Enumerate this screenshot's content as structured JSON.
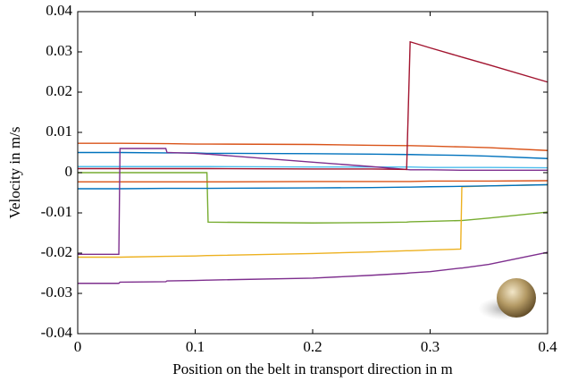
{
  "chart_data": {
    "type": "line",
    "xlabel": "Position on the belt in transport direction in m",
    "ylabel": "Velocity in m/s",
    "x": [
      0,
      0.035,
      0.036,
      0.075,
      0.076,
      0.1,
      0.11,
      0.111,
      0.2,
      0.25,
      0.28,
      0.283,
      0.3,
      0.326,
      0.327,
      0.35,
      0.4
    ],
    "xlim": [
      0,
      0.4
    ],
    "xticks": [
      0,
      0.1,
      0.2,
      0.3,
      0.4
    ],
    "ylim": [
      -0.04,
      0.04
    ],
    "yticks": [
      0.04,
      0.03,
      0.02,
      0.01,
      0,
      -0.01,
      -0.02,
      -0.03,
      -0.04
    ],
    "series": [
      {
        "color": "#d95319",
        "values": [
          0.0073,
          0.0073,
          0.0073,
          0.0072,
          0.0072,
          0.0071,
          0.0071,
          0.0071,
          0.007,
          0.0068,
          0.0067,
          0.0067,
          0.0066,
          0.0064,
          0.0064,
          0.0062,
          0.0055
        ]
      },
      {
        "color": "#0072bd",
        "values": [
          0.005,
          0.005,
          0.005,
          0.0049,
          0.0049,
          0.0049,
          0.0048,
          0.0048,
          0.0047,
          0.0046,
          0.0045,
          0.0045,
          0.0044,
          0.0043,
          0.0043,
          0.0041,
          0.0035
        ]
      },
      {
        "color": "#4dbeee",
        "values": [
          0.0015,
          0.0015,
          0.0015,
          0.0015,
          0.0015,
          0.0015,
          0.0015,
          0.0015,
          0.0014,
          0.0014,
          0.0014,
          0.0014,
          0.0013,
          0.0013,
          0.0013,
          0.0013,
          0.0012
        ]
      },
      {
        "color": "#77ac30",
        "values": [
          0,
          0,
          0,
          0,
          0,
          0,
          0,
          -0.0123,
          -0.0125,
          -0.0124,
          -0.0123,
          -0.0122,
          -0.0121,
          -0.0119,
          -0.0119,
          -0.0113,
          -0.0098
        ]
      },
      {
        "color": "#edb120",
        "values": [
          -0.021,
          -0.021,
          -0.021,
          -0.0208,
          -0.0208,
          -0.0207,
          -0.0206,
          -0.0206,
          -0.0201,
          -0.0197,
          -0.0194,
          -0.0194,
          -0.0192,
          -0.019,
          -0.0035,
          -0.0033,
          -0.003
        ]
      },
      {
        "color": "#d95319",
        "values": [
          -0.0023,
          -0.0023,
          -0.0023,
          -0.0023,
          -0.0023,
          -0.0023,
          -0.0023,
          -0.0023,
          -0.0022,
          -0.0022,
          -0.0022,
          -0.0022,
          -0.0021,
          -0.0021,
          -0.0021,
          -0.0021,
          -0.002
        ]
      },
      {
        "color": "#0072bd",
        "values": [
          -0.004,
          -0.004,
          -0.004,
          -0.0039,
          -0.0039,
          -0.0039,
          -0.0039,
          -0.0039,
          -0.0038,
          -0.0037,
          -0.0036,
          -0.0036,
          -0.0035,
          -0.0034,
          -0.0034,
          -0.0033,
          -0.003
        ]
      },
      {
        "color": "#7e2f8e",
        "values": [
          -0.0275,
          -0.0275,
          -0.0272,
          -0.0271,
          -0.0269,
          -0.0268,
          -0.0267,
          -0.0267,
          -0.0262,
          -0.0255,
          -0.025,
          -0.0249,
          -0.0246,
          -0.0237,
          -0.0237,
          -0.0228,
          -0.0198
        ]
      },
      {
        "color": "#7e2f8e",
        "values": [
          -0.0203,
          -0.0203,
          0.006,
          0.006,
          0.005,
          0.0048,
          0.0046,
          0.0046,
          0.0026,
          0.0015,
          0.0008,
          0.0007,
          0.0007,
          0.0006,
          0.0006,
          0.0006,
          0.0006
        ]
      },
      {
        "color": "#a2142f",
        "values": [
          0.001,
          0.001,
          0.001,
          0.001,
          0.001,
          0.001,
          0.001,
          0.001,
          0.0009,
          0.0009,
          0.0008,
          0.0325,
          0.031,
          0.0288,
          0.0287,
          0.0268,
          0.0225
        ]
      }
    ]
  }
}
